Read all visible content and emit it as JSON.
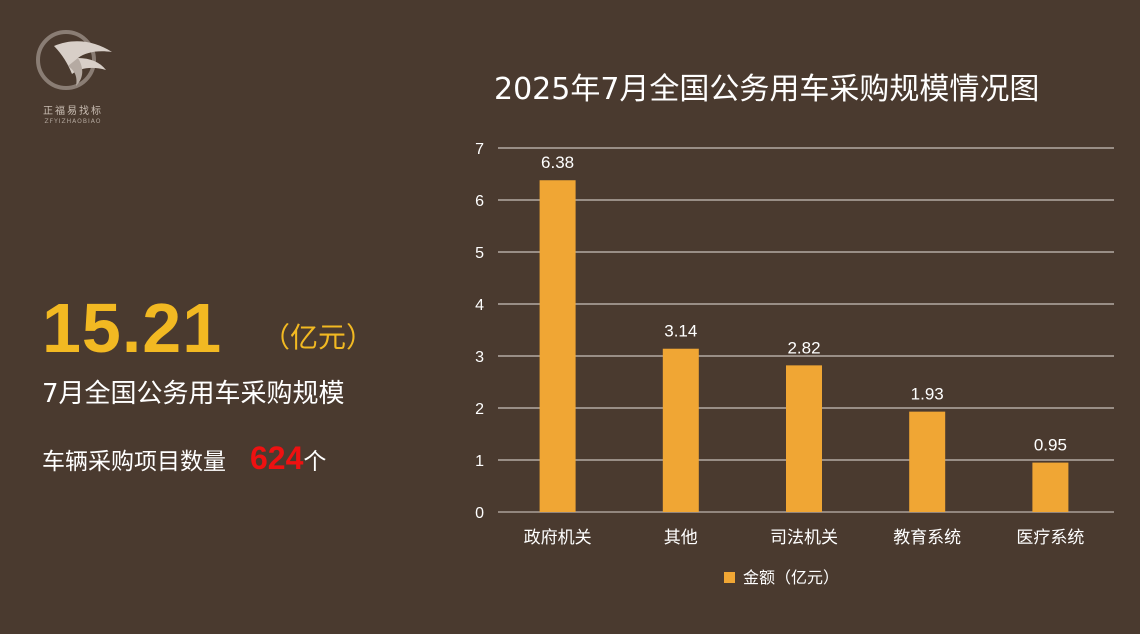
{
  "logo": {
    "name": "正福易找标",
    "subtitle": "ZFYIZHAOBIAO"
  },
  "summary": {
    "total_value": "15.21",
    "total_unit": "（亿元）",
    "total_label": "7月全国公务用车采购规模",
    "project_label": "车辆采购项目数量",
    "project_count": "624",
    "project_unit": "个"
  },
  "colors": {
    "background": "#4a3a2f",
    "bar": "#f0a634",
    "highlight": "#f2b922",
    "count_red": "#ee1111"
  },
  "chart_data": {
    "type": "bar",
    "title": "2025年7月全国公务用车采购规模情况图",
    "categories": [
      "政府机关",
      "其他",
      "司法机关",
      "教育系统",
      "医疗系统"
    ],
    "series": [
      {
        "name": "金额（亿元）",
        "values": [
          6.38,
          3.14,
          2.82,
          1.93,
          0.95
        ]
      }
    ],
    "data_labels": [
      "6.38",
      "3.14",
      "2.82",
      "1.93",
      "0.95"
    ],
    "ylim": [
      0,
      7
    ],
    "yticks": [
      0,
      1,
      2,
      3,
      4,
      5,
      6,
      7
    ],
    "grid": true,
    "legend_position": "bottom"
  }
}
